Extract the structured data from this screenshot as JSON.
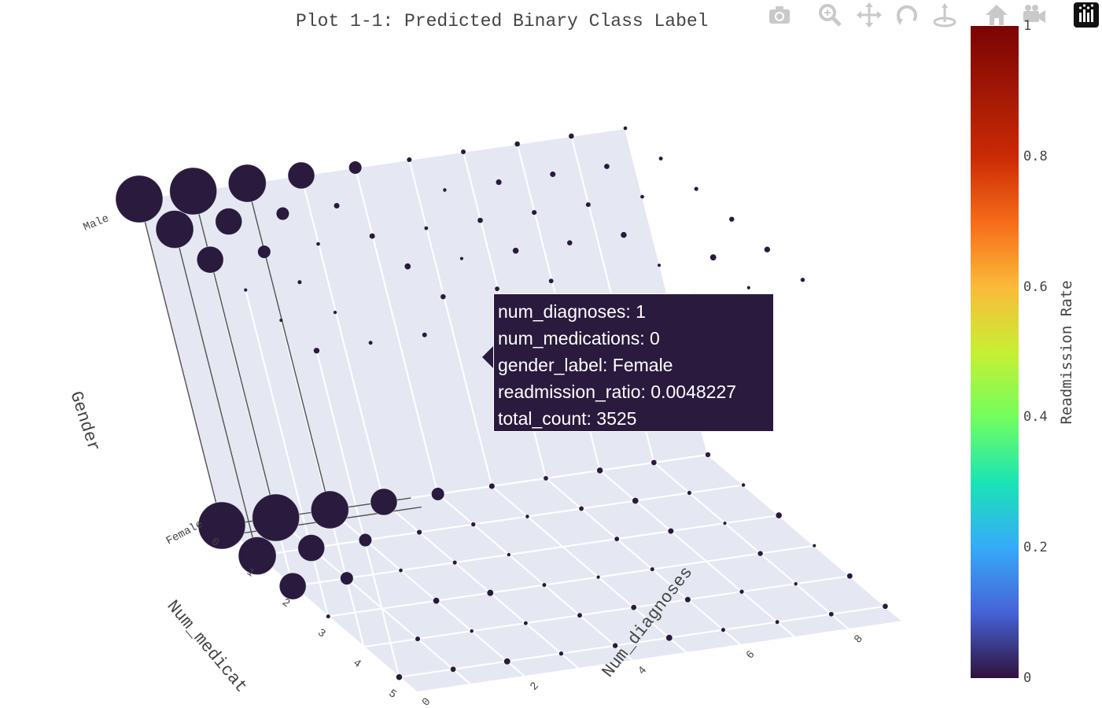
{
  "title": "Plot 1-1: Predicted Binary Class Label",
  "modebar": {
    "tools": [
      "camera-icon",
      "zoom-icon",
      "pan-icon",
      "orbit-rotation-icon",
      "turntable-rotation-icon",
      "reset-camera-icon",
      "last-save-camera-icon",
      "plotly-logo-icon"
    ]
  },
  "chart_data": {
    "type": "scatter3d",
    "title": "Plot 1-1: Predicted Binary Class Label",
    "axes": {
      "x": {
        "label": "Num_diagnoses",
        "ticks": [
          "0",
          "2",
          "4",
          "6",
          "8"
        ],
        "range": [
          0,
          9
        ]
      },
      "y": {
        "label": "Num_medicat",
        "ticks": [
          "0",
          "1",
          "2",
          "3",
          "4",
          "5"
        ],
        "range": [
          0,
          5.5
        ]
      },
      "z": {
        "label": "Gender",
        "ticks": [
          "Female",
          "Male"
        ]
      }
    },
    "marker_color": "#2a1a3e",
    "marker_size_field": "total_count",
    "colorbar": {
      "title": "Readmission Rate",
      "ticks": [
        "0",
        "0.2",
        "0.4",
        "0.6",
        "0.8",
        "1"
      ],
      "range": [
        0,
        1
      ],
      "colorscale": [
        "#30123b",
        "#4662d7",
        "#36aaf9",
        "#1ae4b6",
        "#72fe5e",
        "#c8ef34",
        "#faba39",
        "#f66b19",
        "#ca2a04",
        "#7a0403"
      ]
    },
    "hover": {
      "lines": [
        "num_diagnoses: 1",
        "num_medications: 0",
        "gender_label: Female",
        "readmission_ratio: 0.0048227",
        "total_count: 3525"
      ]
    }
  }
}
